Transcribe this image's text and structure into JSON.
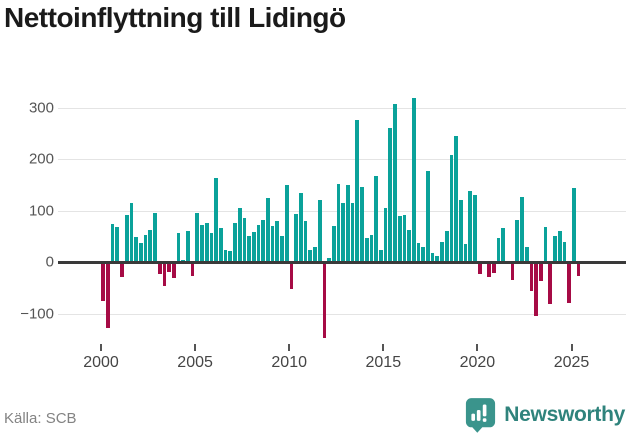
{
  "title": "Nettoinflyttning till Lidingö",
  "source": "Källa: SCB",
  "brand": {
    "name": "Newsworthy"
  },
  "colors": {
    "positive": "#0aa29a",
    "negative": "#a60b45",
    "title": "#1a1a1a",
    "axis_text": "#4d4d4d",
    "gridline": "#e4e4e4",
    "zero_line": "#3a3a3a",
    "source_text": "#838383",
    "brand_teal": "#3a948c"
  },
  "chart_data": {
    "type": "bar",
    "title": "Nettoinflyttning till Lidingö",
    "frequency": "quarterly",
    "start": "2000-Q1",
    "end": "2025-Q2",
    "xlabel": "",
    "ylabel": "",
    "grid": true,
    "x_ticks": [
      2000,
      2005,
      2010,
      2015,
      2020,
      2025
    ],
    "y_ticks": [
      300,
      200,
      100,
      0,
      -100
    ],
    "ylim": [
      -150,
      330
    ],
    "values": [
      -73,
      -127,
      73,
      67,
      -28,
      92,
      115,
      49,
      37,
      53,
      63,
      96,
      -21,
      -44,
      -18,
      -29,
      56,
      3,
      61,
      -25,
      95,
      71,
      76,
      56,
      163,
      66,
      24,
      21,
      76,
      105,
      85,
      50,
      59,
      72,
      82,
      124,
      70,
      79,
      50,
      150,
      -50,
      94,
      134,
      79,
      24,
      29,
      121,
      -145,
      8,
      69,
      152,
      115,
      149,
      115,
      275,
      146,
      47,
      52,
      167,
      23,
      105,
      261,
      307,
      90,
      92,
      62,
      318,
      37,
      30,
      177,
      18,
      12,
      38,
      60,
      207,
      244,
      120,
      34,
      137,
      130,
      -21,
      0,
      -27,
      -20,
      47,
      66,
      0,
      -33,
      82,
      126,
      30,
      -54,
      -103,
      -35,
      68,
      -80,
      51,
      61,
      38,
      -77,
      144,
      -25
    ]
  }
}
